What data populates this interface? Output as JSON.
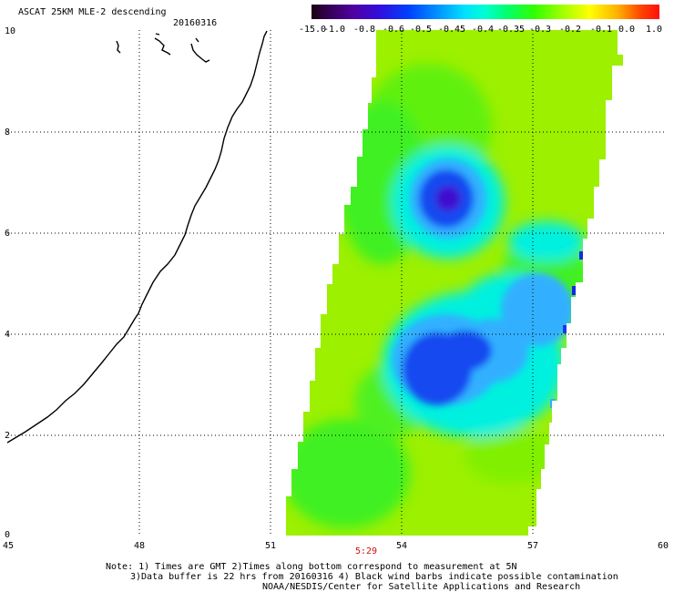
{
  "title": "ASCAT 25KM MLE-2 descending",
  "date": "20160316",
  "colorbar": {
    "labels": [
      "-15.0",
      "-1.0",
      "-0.8",
      "-0.6",
      "-0.5",
      "-0.45",
      "-0.4",
      "-0.35",
      "-0.3",
      "-0.2",
      "-0.1",
      "0.0",
      "1.0"
    ],
    "colors": [
      "#1a0010",
      "#3a0050",
      "#5a00a0",
      "#2020e0",
      "#0060ff",
      "#00b0ff",
      "#00ffff",
      "#00ffa0",
      "#00ff30",
      "#80ff00",
      "#ffff00",
      "#ffb000",
      "#ff3000"
    ]
  },
  "axes": {
    "x_ticks": [
      "45",
      "48",
      "51",
      "54",
      "57",
      "60"
    ],
    "y_ticks": [
      "0",
      "2",
      "4",
      "6",
      "8",
      "10"
    ]
  },
  "time_label": "5:29",
  "notes": [
    "Note: 1) Times are GMT 2)Times along bottom correspond to measurement at 5N",
    "3)Data buffer is 22 hrs from 20160316 4) Black wind barbs indicate possible contamination",
    "NOAA/NESDIS/Center for Satellite Applications and Research"
  ],
  "colors": {
    "swath_base": "#9cf000",
    "swath_green": "#40f020",
    "cyan": "#00f0e0",
    "light_blue": "#30b0ff",
    "blue": "#1848f0",
    "dark_blue": "#3000c0",
    "coast": "#000000",
    "grid": "#000000",
    "time": "#d01010"
  }
}
